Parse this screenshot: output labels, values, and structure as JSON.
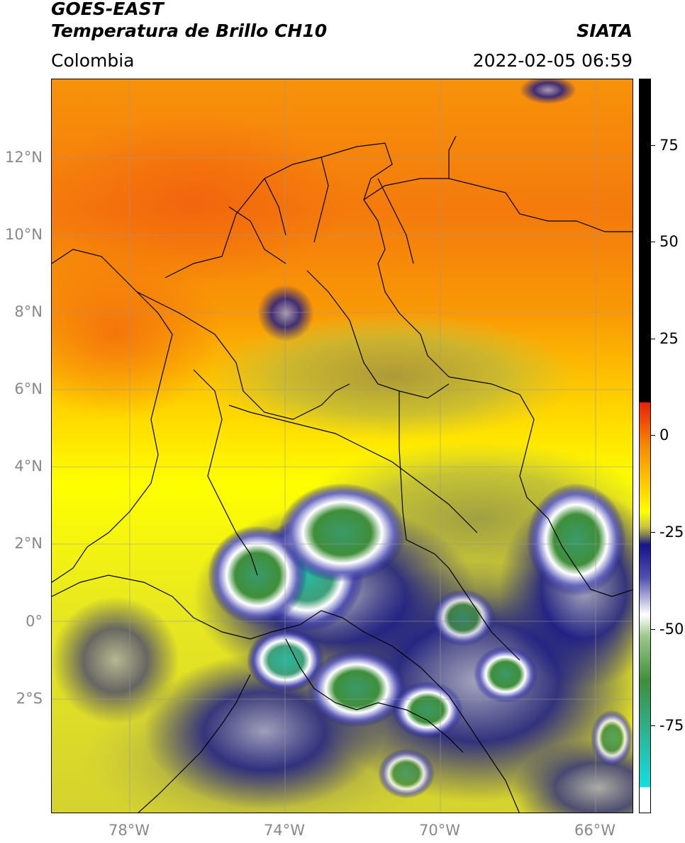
{
  "header": {
    "satellite": "GOES-EAST",
    "product": "Temperatura de Brillo CH10",
    "agency": "SIATA",
    "region": "Colombia",
    "datetime": "2022-02-05 06:59"
  },
  "map": {
    "lat_labels": [
      "12°N",
      "10°N",
      "8°N",
      "6°N",
      "4°N",
      "2°N",
      "0°",
      "2°S"
    ],
    "lon_labels": [
      "78°W",
      "74°W",
      "70°W",
      "66°W"
    ]
  },
  "colorbar": {
    "tick_labels": [
      "75",
      "50",
      "25",
      "0",
      "-25",
      "-50",
      "-75"
    ],
    "colors": {
      "black": "#000000",
      "red": "#e8200a",
      "orange": "#f58a00",
      "yellow": "#ffff00",
      "olive": "#c8c640",
      "navy": "#14148c",
      "white": "#ffffff",
      "green": "#3f8f3a",
      "teal": "#2ab8a0",
      "cyan": "#10e0e0"
    }
  }
}
